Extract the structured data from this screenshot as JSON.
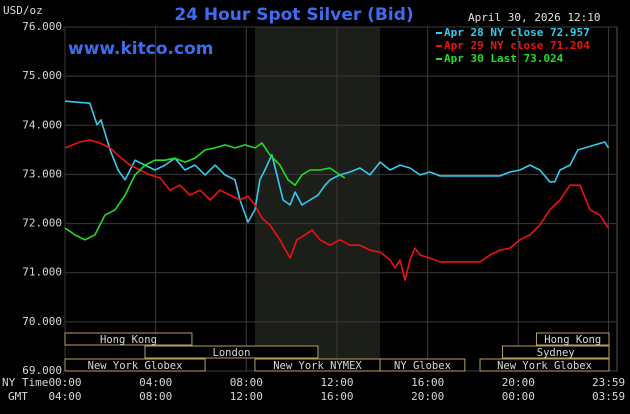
{
  "chart_data": {
    "type": "line",
    "title": "24 Hour Spot Silver (Bid)",
    "y_label": "USD/oz",
    "timestamp": "April 30, 2026 12:10",
    "watermark": "www.kitco.com",
    "x_label": "NY Time",
    "x2_label": "GMT",
    "xlim": [
      0,
      24
    ],
    "xticks": [
      {
        "value": 0,
        "label": "00:00"
      },
      {
        "value": 4,
        "label": "04:00"
      },
      {
        "value": 8,
        "label": "08:00"
      },
      {
        "value": 12,
        "label": "12:00"
      },
      {
        "value": 16,
        "label": "16:00"
      },
      {
        "value": 20,
        "label": "20:00"
      },
      {
        "value": 23.98,
        "label": "23:59"
      }
    ],
    "x2tick_labels": [
      "04:00",
      "08:00",
      "12:00",
      "16:00",
      "20:00",
      "00:00",
      "03:59"
    ],
    "ylim": [
      69,
      76
    ],
    "yticks": [
      {
        "value": 69,
        "label": "69.000"
      },
      {
        "value": 70,
        "label": "70.000"
      },
      {
        "value": 71,
        "label": "71.000"
      },
      {
        "value": 72,
        "label": "72.000"
      },
      {
        "value": 73,
        "label": "73.000"
      },
      {
        "value": 74,
        "label": "74.000"
      },
      {
        "value": 75,
        "label": "75.000"
      },
      {
        "value": 76,
        "label": "76.000"
      }
    ],
    "grid": true,
    "legend": "top-right",
    "series": [
      {
        "name": "Apr 28 NY close 72.957",
        "color": "#33ccee",
        "x": [
          0,
          1.1,
          1.41,
          1.59,
          1.99,
          2.34,
          2.65,
          3.09,
          3.53,
          3.97,
          4.41,
          4.85,
          5.29,
          5.73,
          6.18,
          6.62,
          7.06,
          7.5,
          7.72,
          8.07,
          8.38,
          8.6,
          8.82,
          9.13,
          9.4,
          9.62,
          9.93,
          10.15,
          10.45,
          10.81,
          11.16,
          11.47,
          11.69,
          12.13,
          12.57,
          13.01,
          13.45,
          13.9,
          14.34,
          14.78,
          15.22,
          15.66,
          16.1,
          16.54,
          17.42,
          18.31,
          19.19,
          19.63,
          20.07,
          20.51,
          20.95,
          21.39,
          21.61,
          21.84,
          22.28,
          22.63,
          22.94,
          23.38,
          23.82,
          23.98
        ],
        "values": [
          74.49,
          74.45,
          74.01,
          74.11,
          73.5,
          73.09,
          72.89,
          73.29,
          73.19,
          73.09,
          73.19,
          73.33,
          73.09,
          73.19,
          72.99,
          73.19,
          72.99,
          72.89,
          72.48,
          72.03,
          72.28,
          72.89,
          73.09,
          73.4,
          72.89,
          72.48,
          72.38,
          72.64,
          72.38,
          72.48,
          72.58,
          72.78,
          72.89,
          72.99,
          73.05,
          73.13,
          72.99,
          73.25,
          73.09,
          73.19,
          73.13,
          72.99,
          73.05,
          72.97,
          72.97,
          72.97,
          72.97,
          73.05,
          73.09,
          73.19,
          73.09,
          72.85,
          72.85,
          73.09,
          73.19,
          73.5,
          73.54,
          73.6,
          73.66,
          73.54
        ]
      },
      {
        "name": "Apr 29 NY close 71.204",
        "color": "#ee1111",
        "x": [
          0,
          0.66,
          1.1,
          1.54,
          1.99,
          2.43,
          2.87,
          3.31,
          3.75,
          4.19,
          4.63,
          5.07,
          5.51,
          5.96,
          6.4,
          6.84,
          7.28,
          7.72,
          8.07,
          8.38,
          8.69,
          9.04,
          9.48,
          9.93,
          10.23,
          10.59,
          10.9,
          11.25,
          11.69,
          12.13,
          12.57,
          13.01,
          13.45,
          13.9,
          14.34,
          14.56,
          14.78,
          15.0,
          15.22,
          15.44,
          15.66,
          16.1,
          16.54,
          16.98,
          17.86,
          18.31,
          18.75,
          19.19,
          19.63,
          20.07,
          20.51,
          20.95,
          21.39,
          21.84,
          22.28,
          22.72,
          23.16,
          23.6,
          23.98
        ],
        "values": [
          73.54,
          73.66,
          73.7,
          73.64,
          73.54,
          73.35,
          73.19,
          73.09,
          72.99,
          72.93,
          72.68,
          72.78,
          72.58,
          72.68,
          72.48,
          72.68,
          72.58,
          72.48,
          72.56,
          72.38,
          72.11,
          71.97,
          71.67,
          71.3,
          71.67,
          71.77,
          71.87,
          71.67,
          71.56,
          71.67,
          71.56,
          71.56,
          71.46,
          71.42,
          71.26,
          71.1,
          71.26,
          70.85,
          71.26,
          71.5,
          71.36,
          71.3,
          71.22,
          71.22,
          71.22,
          71.22,
          71.36,
          71.46,
          71.5,
          71.67,
          71.77,
          71.97,
          72.28,
          72.48,
          72.78,
          72.78,
          72.28,
          72.17,
          71.91
        ]
      },
      {
        "name": "Apr 30 Last 73.024",
        "color": "#22dd22",
        "x": [
          0,
          0.44,
          0.88,
          1.32,
          1.76,
          2.21,
          2.65,
          3.09,
          3.53,
          3.97,
          4.41,
          4.85,
          5.29,
          5.73,
          6.18,
          6.62,
          7.06,
          7.5,
          7.94,
          8.38,
          8.69,
          9.04,
          9.48,
          9.84,
          10.15,
          10.45,
          10.81,
          11.25,
          11.69,
          12.13,
          12.35
        ],
        "values": [
          71.91,
          71.77,
          71.67,
          71.77,
          72.17,
          72.28,
          72.58,
          72.99,
          73.19,
          73.29,
          73.29,
          73.33,
          73.25,
          73.33,
          73.5,
          73.54,
          73.6,
          73.54,
          73.6,
          73.54,
          73.64,
          73.4,
          73.19,
          72.89,
          72.78,
          72.99,
          73.09,
          73.09,
          73.13,
          72.99,
          72.93
        ]
      }
    ],
    "sessions": [
      {
        "label": "Hong Kong",
        "start": 0,
        "end": 5.6,
        "row": 0
      },
      {
        "label": "Hong Kong",
        "start": 20.8,
        "end": 24,
        "row": 0
      },
      {
        "label": "London",
        "start": 3.53,
        "end": 11.16,
        "row": 1
      },
      {
        "label": "Sydney",
        "start": 19.3,
        "end": 24,
        "row": 1
      },
      {
        "label": "New York Globex",
        "start": 0,
        "end": 6.18,
        "row": 2
      },
      {
        "label": "New York NYMEX",
        "start": 8.38,
        "end": 13.9,
        "row": 2
      },
      {
        "label": "NY Globex",
        "start": 13.9,
        "end": 17.64,
        "row": 2
      },
      {
        "label": "New York Globex",
        "start": 18.31,
        "end": 24,
        "row": 2
      }
    ],
    "highlight_session": 5
  }
}
